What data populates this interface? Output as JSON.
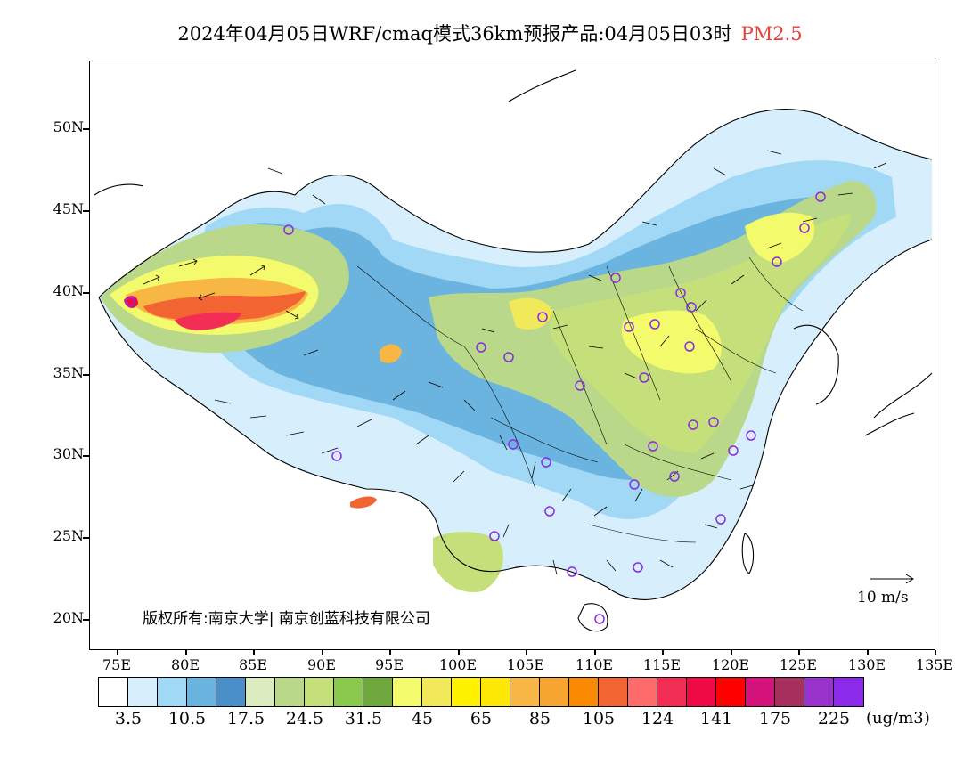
{
  "title": {
    "main": "2024年04月05日WRF/cmaq模式36km预报产品:04月05日03时",
    "pollutant": "PM2.5"
  },
  "axes": {
    "lat_labels": [
      "50N",
      "45N",
      "40N",
      "35N",
      "30N",
      "25N",
      "20N"
    ],
    "lon_labels": [
      "75E",
      "80E",
      "85E",
      "90E",
      "95E",
      "100E",
      "105E",
      "110E",
      "115E",
      "120E",
      "125E",
      "130E",
      "135E"
    ]
  },
  "copyright": "版权所有:南京大学| 南京创蓝科技有限公司",
  "wind_reference": "10 m/s",
  "colorbar": {
    "colors": [
      "#ffffff",
      "#d7effc",
      "#a0d8f5",
      "#6cb4e0",
      "#4a8fc7",
      "#dcecc0",
      "#b9d88a",
      "#c5e07a",
      "#8ac94e",
      "#6fa83c",
      "#f3fa6b",
      "#f1e95a",
      "#fff200",
      "#fde704",
      "#f8b745",
      "#f6a630",
      "#f98900",
      "#f26532",
      "#fe6b6b",
      "#f22e55",
      "#f00a45",
      "#fe0000",
      "#d3127a",
      "#a6305d",
      "#9933cc",
      "#8b2ae8"
    ],
    "labels": [
      "3.5",
      "10.5",
      "17.5",
      "24.5",
      "31.5",
      "45",
      "65",
      "85",
      "105",
      "124",
      "141",
      "175",
      "225"
    ],
    "unit": "(ug/m3)"
  },
  "colors": {
    "title_accent": "#e8403a",
    "station_marker": "#8a2be2"
  }
}
